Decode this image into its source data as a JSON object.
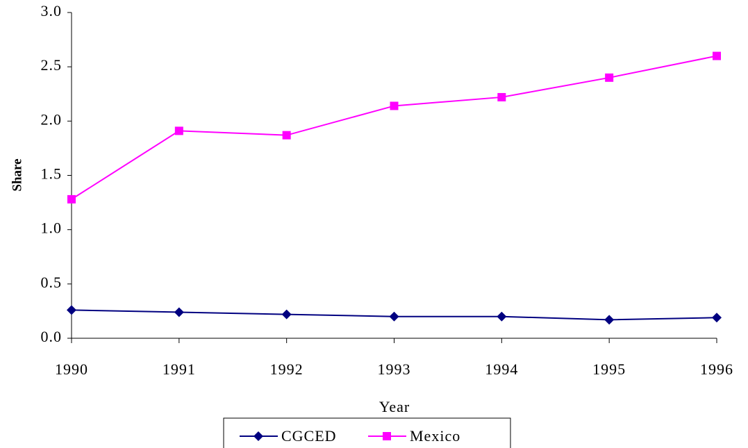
{
  "chart_data": {
    "type": "line",
    "x_label": "Year",
    "y_label": "Share",
    "categories": [
      "1990",
      "1991",
      "1992",
      "1993",
      "1994",
      "1995",
      "1996"
    ],
    "series": [
      {
        "name": "CGCED",
        "color": "#000080",
        "marker": "diamond",
        "values": [
          0.26,
          0.24,
          0.22,
          0.2,
          0.2,
          0.17,
          0.19
        ]
      },
      {
        "name": "Mexico",
        "color": "#ff00ff",
        "marker": "square",
        "values": [
          1.28,
          1.91,
          1.87,
          2.14,
          2.22,
          2.4,
          2.6
        ]
      }
    ],
    "ylim": [
      0,
      3
    ],
    "yticks": [
      {
        "value": 0,
        "label": "0.0"
      },
      0.5,
      {
        "value": 1,
        "label": "1.0"
      },
      1.5,
      {
        "value": 2,
        "label": "2.0"
      },
      2.5,
      {
        "value": 3,
        "label": "3.0"
      }
    ],
    "grid": false
  }
}
